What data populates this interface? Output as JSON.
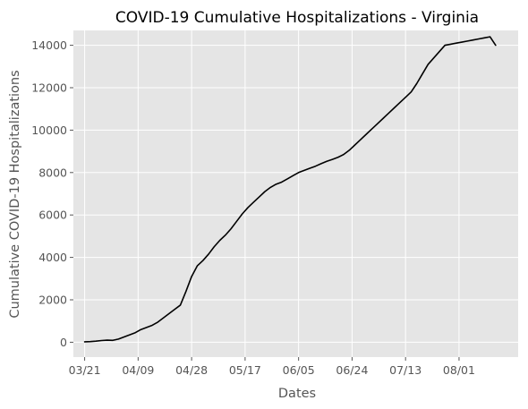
{
  "chart_data": {
    "type": "line",
    "title": "COVID-19 Cumulative Hospitalizations - Virginia",
    "xlabel": "Dates",
    "ylabel": "Cumulative COVID-19 Hospitalizations",
    "x_ticks": [
      "03/21",
      "04/09",
      "04/28",
      "05/17",
      "06/05",
      "06/24",
      "07/13",
      "08/01"
    ],
    "y_ticks": [
      0,
      2000,
      4000,
      6000,
      8000,
      10000,
      12000,
      14000
    ],
    "xlim": [
      "03/17",
      "08/22"
    ],
    "ylim": [
      -700,
      14700
    ],
    "grid": true,
    "style": "ggplot",
    "colors": {
      "background": "#e5e5e5",
      "grid": "#ffffff",
      "line": "#000000"
    },
    "series": [
      {
        "x": [
          "03/21",
          "03/23",
          "03/25",
          "03/27",
          "03/29",
          "03/31",
          "04/02",
          "04/04",
          "04/06",
          "04/08",
          "04/10",
          "04/12",
          "04/14",
          "04/16",
          "04/18",
          "04/20",
          "04/22",
          "04/24",
          "04/26",
          "04/28",
          "04/30",
          "05/02",
          "05/04",
          "05/06",
          "05/08",
          "05/10",
          "05/12",
          "05/14",
          "05/16",
          "05/18",
          "05/20",
          "05/22",
          "05/24",
          "05/26",
          "05/28",
          "05/30",
          "06/01",
          "06/03",
          "06/05",
          "06/07",
          "06/09",
          "06/11",
          "06/13",
          "06/15",
          "06/17",
          "06/19",
          "06/21",
          "06/23",
          "06/25",
          "06/27",
          "06/29",
          "07/01",
          "07/03",
          "07/05",
          "07/07",
          "07/09",
          "07/11",
          "07/13",
          "07/15",
          "07/17",
          "07/19",
          "07/21",
          "07/23",
          "07/25",
          "07/27",
          "07/29",
          "07/31",
          "08/02",
          "08/04",
          "08/06",
          "08/08",
          "08/10",
          "08/12",
          "08/14"
        ],
        "values": [
          20,
          30,
          50,
          80,
          100,
          90,
          150,
          250,
          350,
          450,
          600,
          700,
          800,
          950,
          1150,
          1350,
          1550,
          1750,
          2400,
          3100,
          3600,
          3850,
          4150,
          4500,
          4800,
          5050,
          5350,
          5700,
          6050,
          6350,
          6600,
          6850,
          7100,
          7300,
          7450,
          7550,
          7700,
          7850,
          8000,
          8100,
          8200,
          8300,
          8420,
          8530,
          8620,
          8720,
          8850,
          9050,
          9300,
          9550,
          9800,
          10050,
          10300,
          10550,
          10800,
          11050,
          11300,
          11550,
          11800,
          12200,
          12650,
          13100,
          13400,
          13700,
          14000,
          14050,
          14100,
          14150,
          14200,
          14250,
          14300,
          14350,
          14400,
          14000
        ]
      }
    ]
  }
}
